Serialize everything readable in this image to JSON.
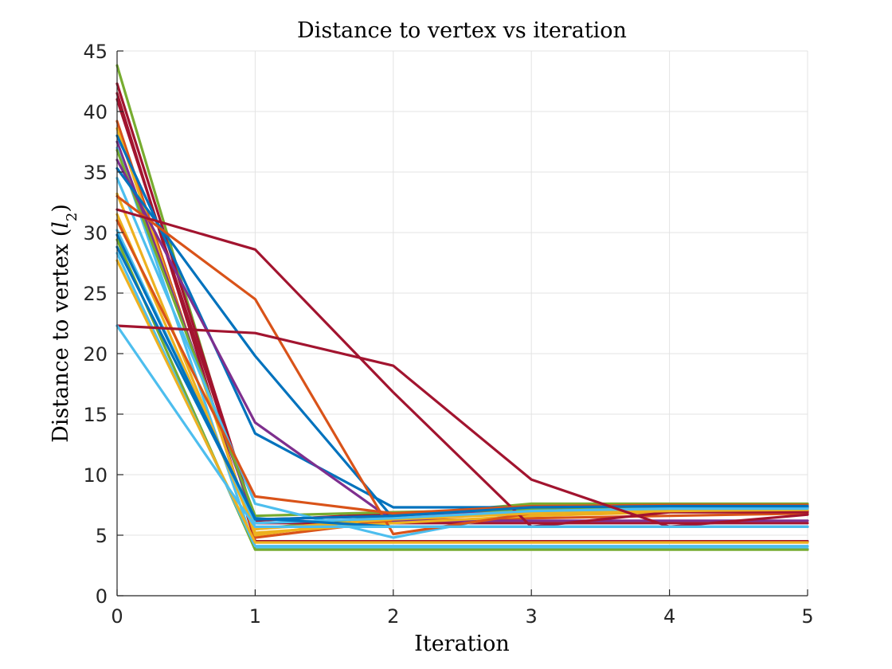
{
  "chart_data": {
    "type": "line",
    "title": "Distance to vertex vs iteration",
    "xlabel": "Iteration",
    "ylabel_main": "Distance to vertex (",
    "ylabel_var": "l",
    "ylabel_sub": "2",
    "ylabel_close": ")",
    "xlim": [
      0,
      5
    ],
    "ylim": [
      0,
      45
    ],
    "xticks": [
      0,
      1,
      2,
      3,
      4,
      5
    ],
    "yticks": [
      0,
      5,
      10,
      15,
      20,
      25,
      30,
      35,
      40,
      45
    ],
    "grid": true,
    "legend": "none",
    "x": [
      0,
      1,
      2,
      3,
      4,
      5
    ],
    "series": [
      {
        "color": "#77ac30",
        "values": [
          43.8,
          5.5,
          6.6,
          7.6,
          7.6,
          7.6
        ]
      },
      {
        "color": "#a2142f",
        "values": [
          42.3,
          6.2,
          6.8,
          7.2,
          7.3,
          7.3
        ]
      },
      {
        "color": "#a2142f",
        "values": [
          41.5,
          4.5,
          4.5,
          4.5,
          4.5,
          4.5
        ]
      },
      {
        "color": "#a2142f",
        "values": [
          41.0,
          6.0,
          6.0,
          6.0,
          6.0,
          6.0
        ]
      },
      {
        "color": "#d95319",
        "values": [
          39.2,
          4.8,
          6.2,
          6.4,
          6.6,
          6.8
        ]
      },
      {
        "color": "#edb120",
        "values": [
          38.6,
          5.0,
          6.5,
          7.0,
          7.2,
          7.3
        ]
      },
      {
        "color": "#0072bd",
        "values": [
          38.0,
          13.4,
          7.3,
          7.3,
          7.3,
          7.3
        ]
      },
      {
        "color": "#7e2f8e",
        "values": [
          37.5,
          6.3,
          6.6,
          7.2,
          7.3,
          7.3
        ]
      },
      {
        "color": "#4dbeee",
        "values": [
          37.0,
          3.9,
          3.9,
          3.9,
          3.9,
          3.9
        ]
      },
      {
        "color": "#77ac30",
        "values": [
          36.8,
          6.6,
          6.9,
          7.1,
          7.2,
          7.2
        ]
      },
      {
        "color": "#7e2f8e",
        "values": [
          36.0,
          14.3,
          6.2,
          6.2,
          6.2,
          6.2
        ]
      },
      {
        "color": "#0072bd",
        "values": [
          35.3,
          19.8,
          6.4,
          6.8,
          7.0,
          7.0
        ]
      },
      {
        "color": "#4dbeee",
        "values": [
          34.5,
          7.6,
          4.8,
          7.0,
          7.2,
          7.2
        ]
      },
      {
        "color": "#edb120",
        "values": [
          33.2,
          5.2,
          6.0,
          6.6,
          6.9,
          7.0
        ]
      },
      {
        "color": "#d95319",
        "values": [
          33.0,
          24.5,
          5.1,
          6.8,
          7.0,
          7.0
        ]
      },
      {
        "color": "#a2142f",
        "values": [
          31.9,
          28.6,
          16.8,
          5.7,
          6.9,
          6.9
        ]
      },
      {
        "color": "#edb120",
        "values": [
          31.5,
          5.5,
          6.3,
          6.8,
          7.0,
          7.1
        ]
      },
      {
        "color": "#d95319",
        "values": [
          31.0,
          8.2,
          6.8,
          7.4,
          7.5,
          7.5
        ]
      },
      {
        "color": "#4dbeee",
        "values": [
          30.2,
          6.0,
          6.4,
          7.0,
          7.2,
          7.2
        ]
      },
      {
        "color": "#0072bd",
        "values": [
          29.8,
          6.3,
          6.6,
          7.3,
          7.4,
          7.4
        ]
      },
      {
        "color": "#77ac30",
        "values": [
          29.4,
          3.8,
          3.8,
          3.8,
          3.8,
          3.8
        ]
      },
      {
        "color": "#0072bd",
        "values": [
          28.8,
          6.4,
          5.7,
          5.7,
          5.7,
          5.7
        ]
      },
      {
        "color": "#4dbeee",
        "values": [
          28.3,
          4.1,
          4.1,
          4.1,
          4.1,
          4.1
        ]
      },
      {
        "color": "#edb120",
        "values": [
          27.7,
          4.4,
          4.4,
          4.4,
          4.4,
          4.4
        ]
      },
      {
        "color": "#a2142f",
        "values": [
          22.3,
          21.7,
          19.0,
          9.6,
          5.7,
          6.7
        ]
      },
      {
        "color": "#4dbeee",
        "values": [
          22.3,
          5.7,
          5.7,
          5.7,
          5.7,
          5.7
        ]
      }
    ]
  }
}
